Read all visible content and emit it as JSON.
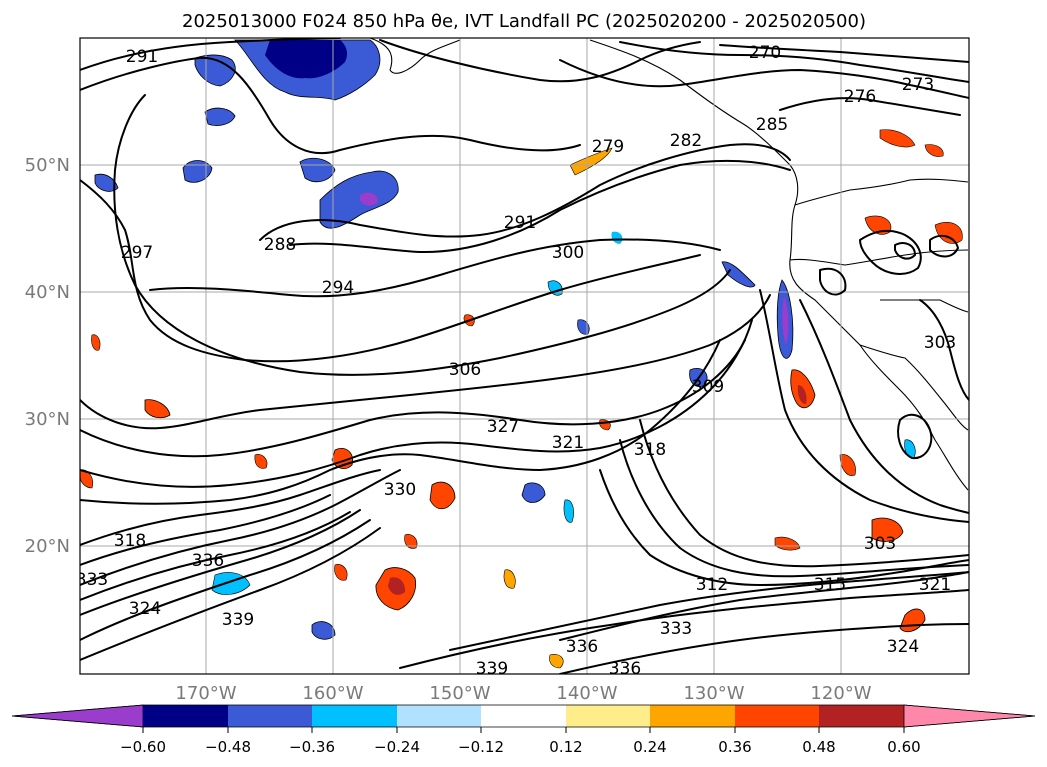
{
  "title": "2025013000 F024 850 hPa θe, IVT Landfall PC (2025020200 - 2025020500)",
  "lat_labels": [
    "50°N",
    "40°N",
    "30°N",
    "20°N"
  ],
  "lon_labels": [
    "170°W",
    "160°W",
    "150°W",
    "140°W",
    "130°W",
    "120°W"
  ],
  "contour_labels": [
    "291",
    "279",
    "276",
    "273",
    "270",
    "285",
    "282",
    "288",
    "291",
    "300",
    "294",
    "297",
    "306",
    "327",
    "321",
    "318",
    "309",
    "303",
    "330",
    "318",
    "324",
    "336",
    "333",
    "339",
    "312",
    "315",
    "321",
    "303",
    "336",
    "333",
    "339",
    "336",
    "324"
  ],
  "colorbar": {
    "ticks": [
      "−0.60",
      "−0.48",
      "−0.36",
      "−0.24",
      "−0.12",
      "0.12",
      "0.24",
      "0.36",
      "0.48",
      "0.60"
    ],
    "colors": [
      "#9a3ccc",
      "#000087",
      "#3a5ad6",
      "#00c0ff",
      "#b0e2ff",
      "#ffffff",
      "#ffec8b",
      "#ffa500",
      "#ff4500",
      "#b22222",
      "#ff88aa"
    ]
  }
}
